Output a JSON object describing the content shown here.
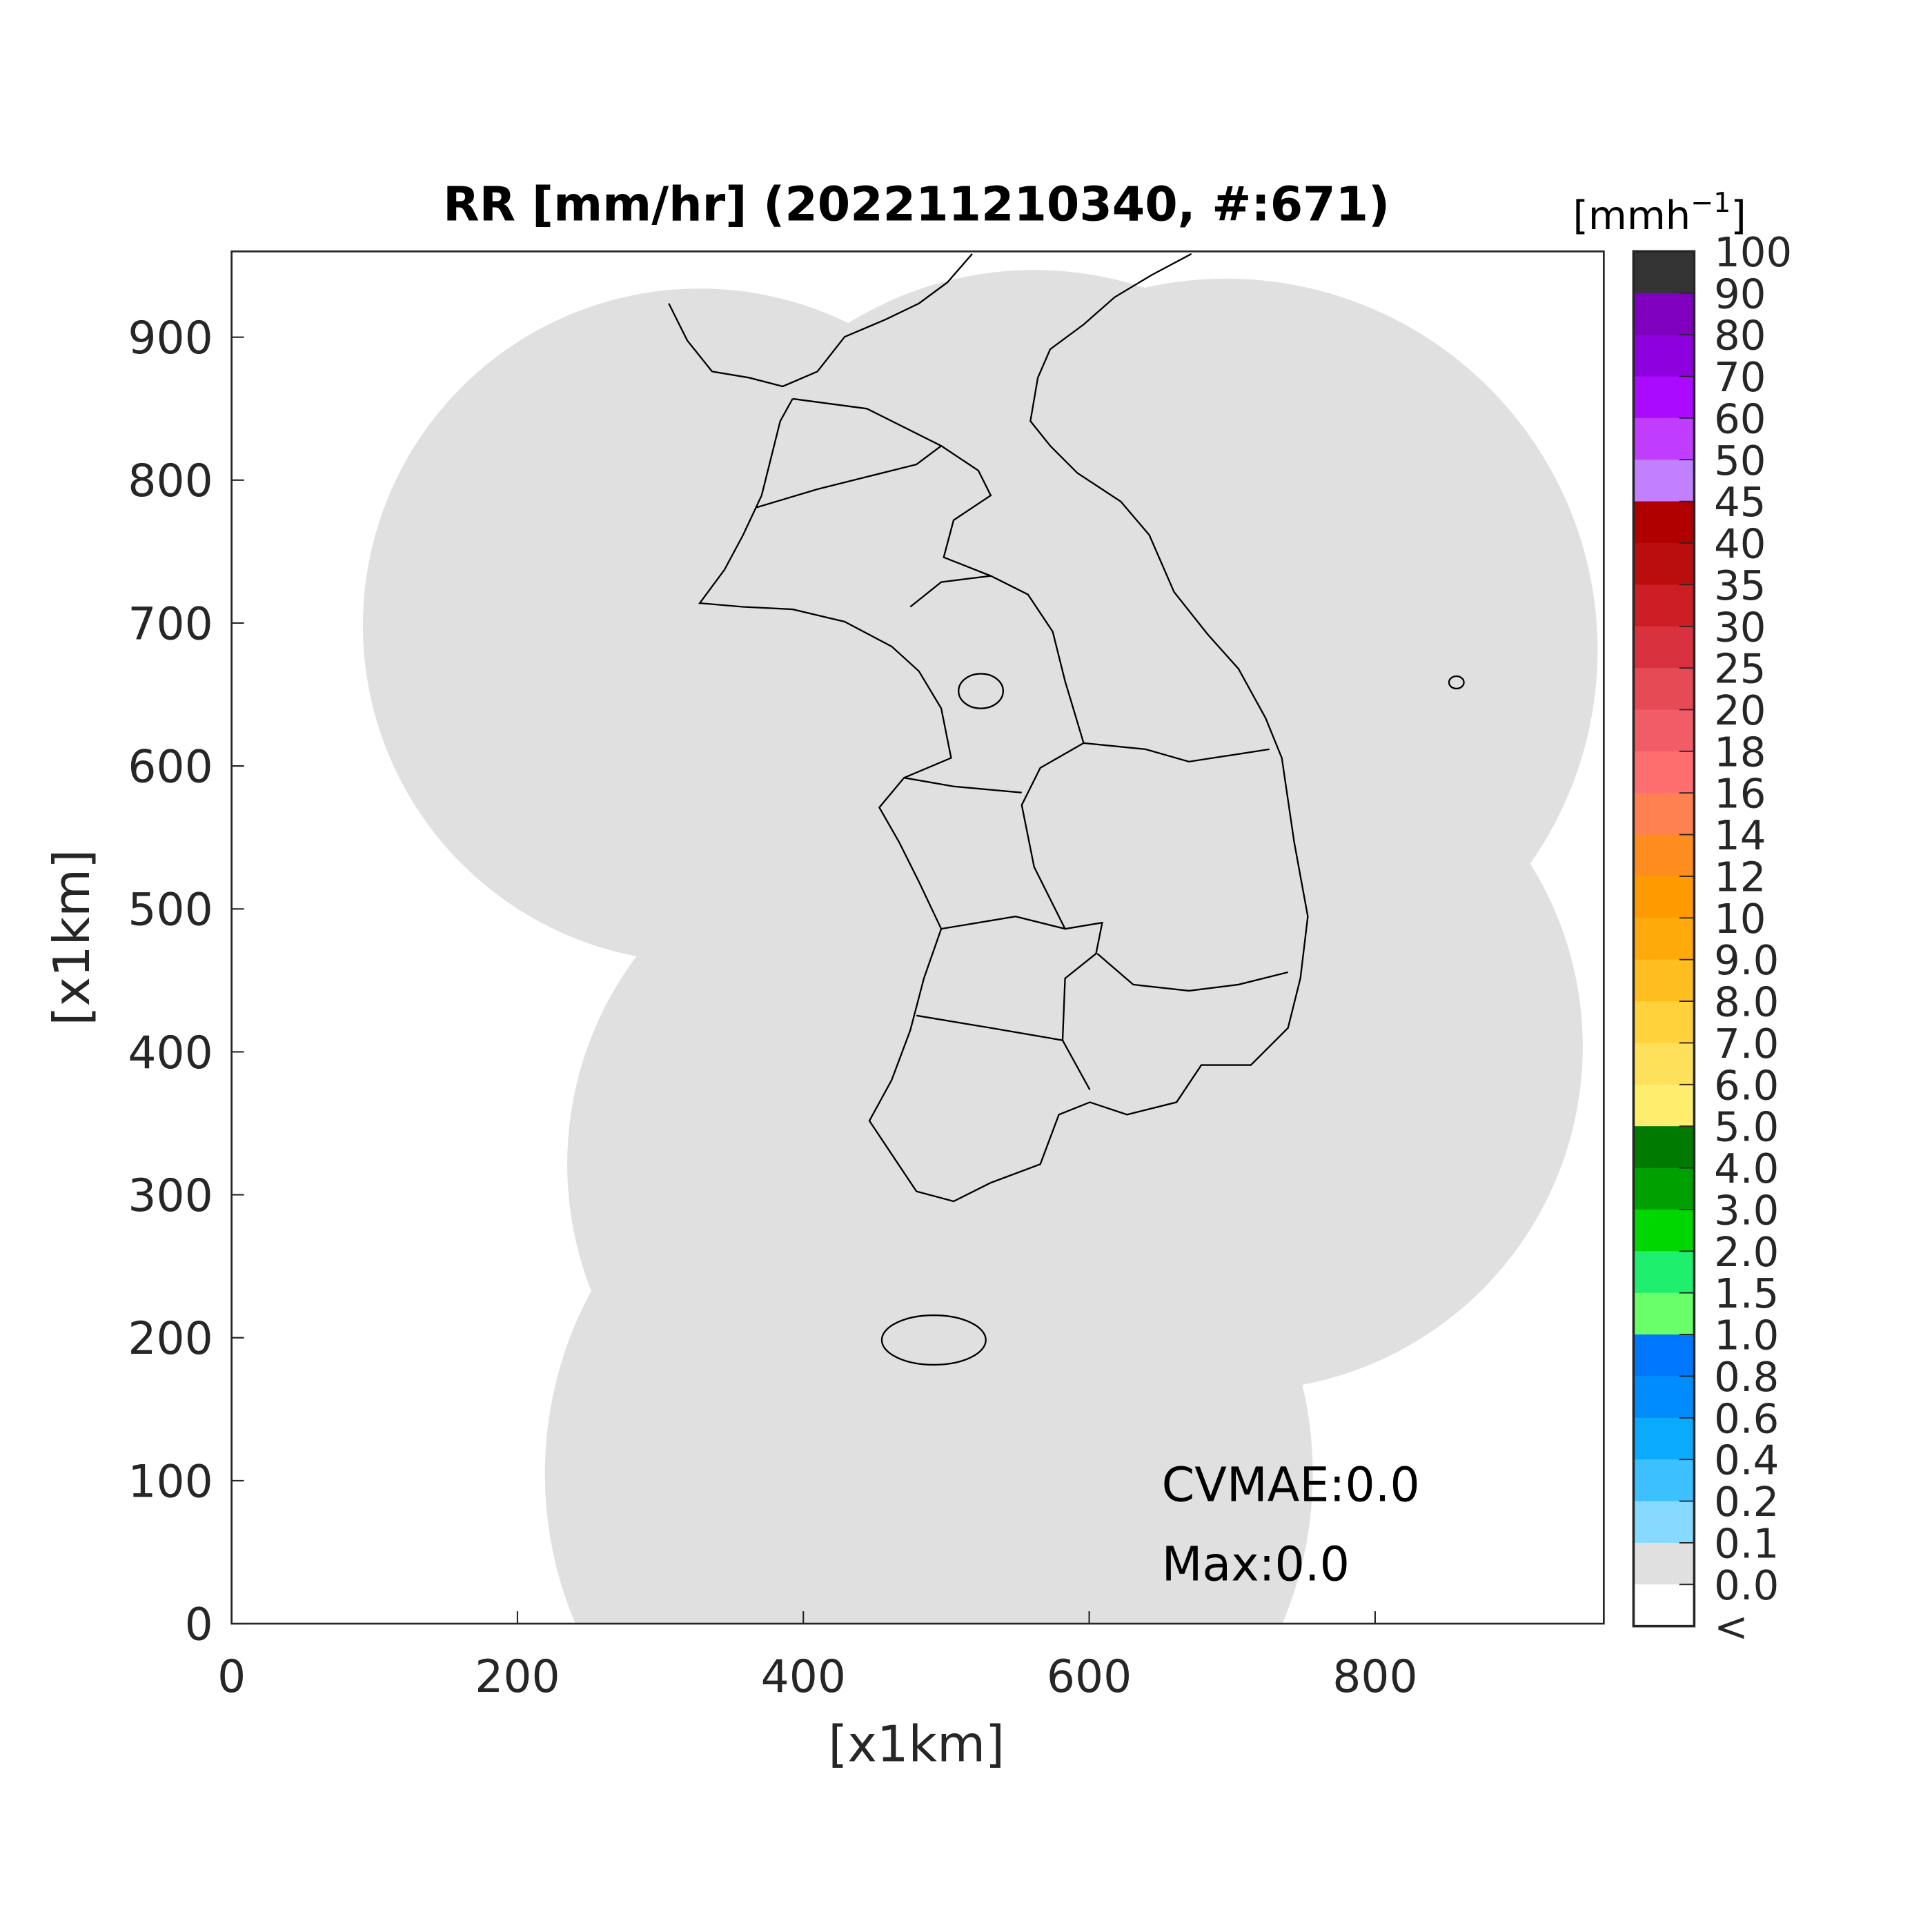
{
  "chart_data": {
    "type": "heatmap",
    "title": "RR [mm/hr] (202211210340, #:671)",
    "xlabel": "[x1km]",
    "ylabel": "[x1km]",
    "xlim": [
      0,
      960
    ],
    "ylim": [
      0,
      960
    ],
    "xticks": [
      "0",
      "200",
      "400",
      "600",
      "800"
    ],
    "yticks": [
      "0",
      "100",
      "200",
      "300",
      "400",
      "500",
      "600",
      "700",
      "800",
      "900"
    ],
    "field_value_mm_per_hr": 0.0,
    "coverage_color": "#E0E0E0",
    "background_color": "#FFFFFF",
    "coastline_color": "#000000",
    "annotations": {
      "cvmae": "CVMAE:0.0",
      "max": "Max:0.0"
    },
    "colorbar": {
      "unit_label": "[mmh",
      "unit_exponent": "−1",
      "unit_close": "]",
      "labels": [
        "100",
        "90",
        "80",
        "70",
        "60",
        "50",
        "45",
        "40",
        "35",
        "30",
        "25",
        "20",
        "18",
        "16",
        "14",
        "12",
        "10",
        "9.0",
        "8.0",
        "7.0",
        "6.0",
        "5.0",
        "4.0",
        "3.0",
        "2.0",
        "1.5",
        "1.0",
        "0.8",
        "0.6",
        "0.4",
        "0.2",
        "0.1",
        "0.0",
        "<"
      ],
      "colors": [
        "#333333",
        "#7F00BF",
        "#8F00DF",
        "#AA0AFF",
        "#C03CFF",
        "#C27FFF",
        "#B00000",
        "#BA0E0E",
        "#CC1E24",
        "#D9313D",
        "#E64A55",
        "#F25C66",
        "#FF6E6E",
        "#FF8050",
        "#FF8C1E",
        "#FF9B00",
        "#FFAA0A",
        "#FFBE20",
        "#FFD13A",
        "#FFE05A",
        "#FFEE6E",
        "#007A00",
        "#00A000",
        "#00D700",
        "#1EF06E",
        "#68FF68",
        "#0077FF",
        "#008CFF",
        "#0AAAFF",
        "#3CC0FF",
        "#87D9FF",
        "#E0E0E0",
        "#FFFFFF"
      ]
    }
  }
}
